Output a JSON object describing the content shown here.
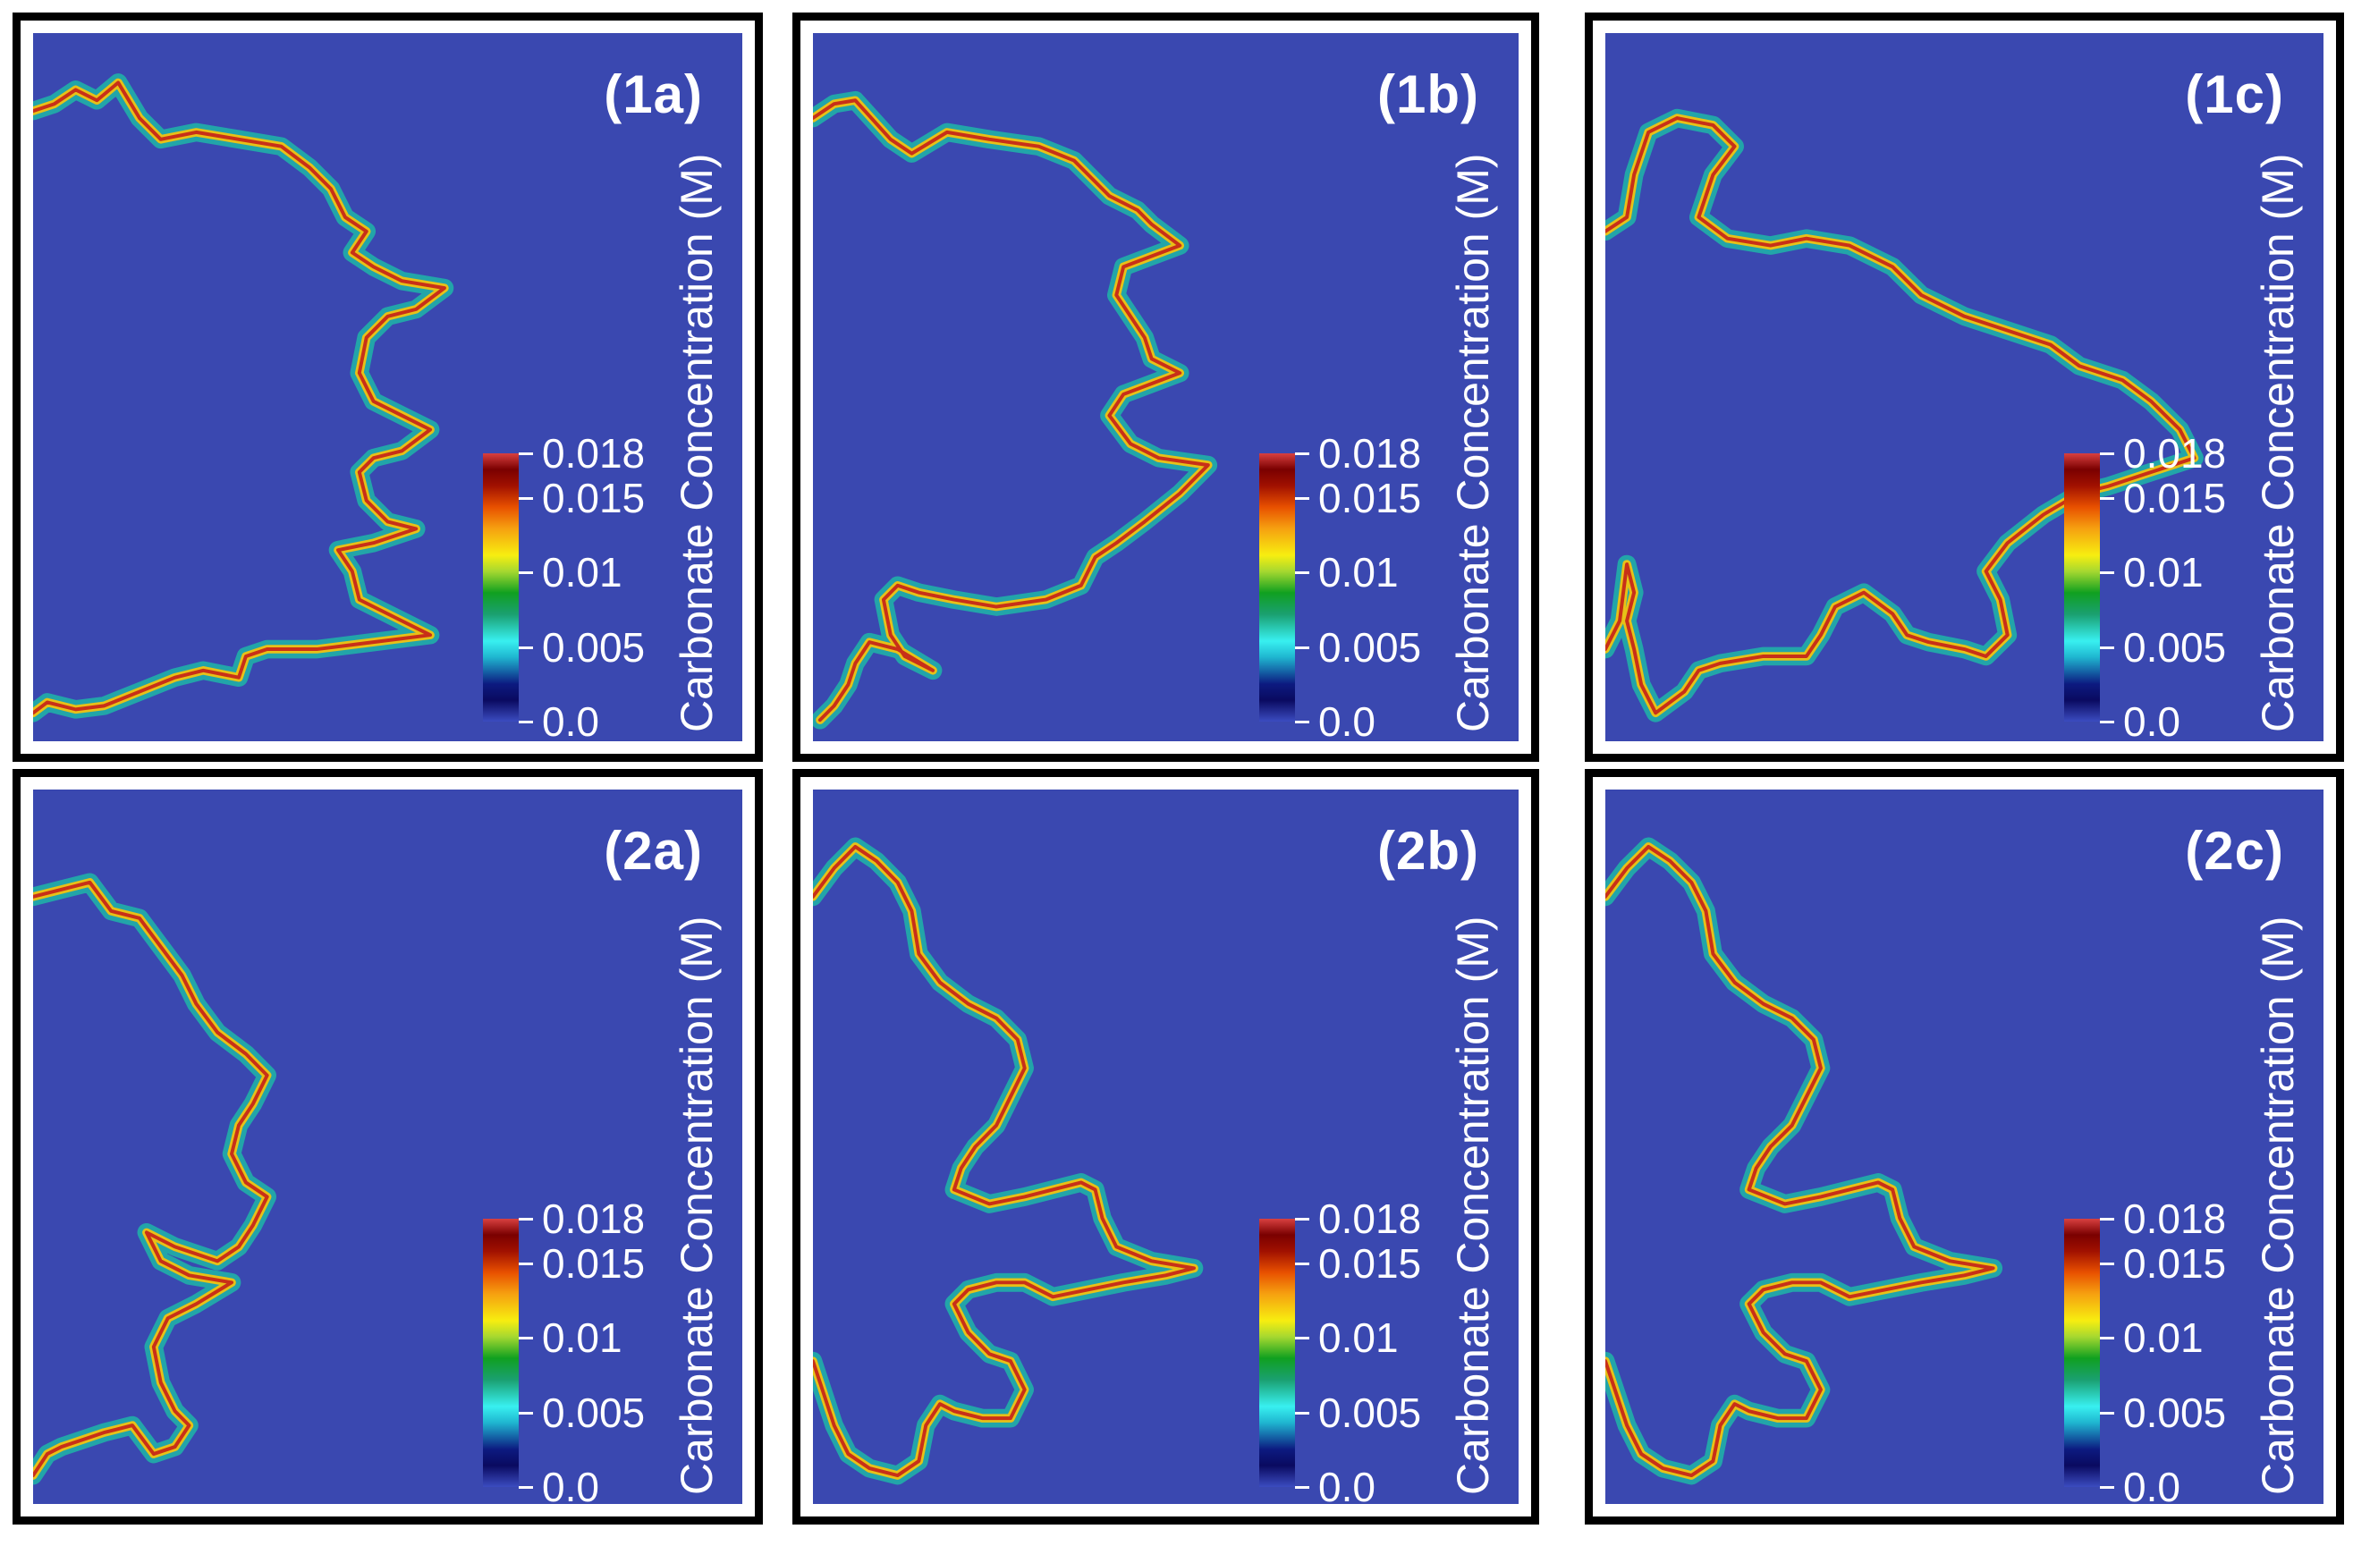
{
  "colorbar": {
    "title": "Carbonate Concentration (M)",
    "ticks": [
      "0.018",
      "0.015",
      "0.01",
      "0.005",
      "0.0"
    ],
    "tick_values": [
      0.018,
      0.015,
      0.01,
      0.005,
      0.0
    ],
    "range": [
      0.0,
      0.018
    ]
  },
  "colors": {
    "background_field": "#3a48b0",
    "front_halo": "#1fb6a8",
    "front_mid": "#f2c20f",
    "front_core": "#c83018",
    "frame": "#000000"
  },
  "panels": [
    {
      "label": "(1a)"
    },
    {
      "label": "(1b)"
    },
    {
      "label": "(1c)"
    },
    {
      "label": "(2a)"
    },
    {
      "label": "(2b)"
    },
    {
      "label": "(2c)"
    }
  ]
}
